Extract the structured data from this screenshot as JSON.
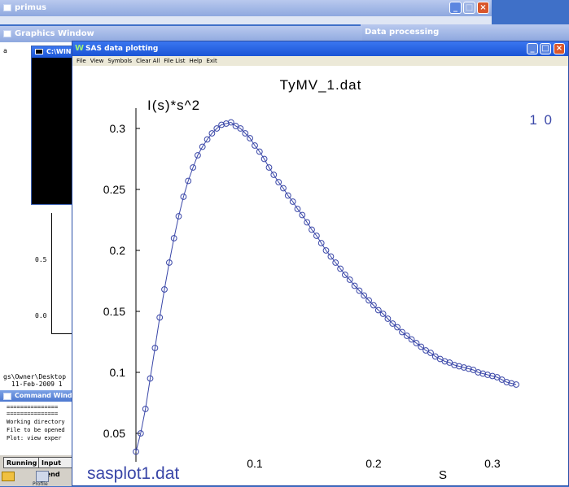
{
  "windows": {
    "primus": {
      "title": "primus"
    },
    "graphics": {
      "title": "Graphics Window",
      "label_a": "a",
      "ticks": [
        "0.5",
        "0.0"
      ]
    },
    "data_processing": {
      "title": "Data processing"
    },
    "console": {
      "title": "C:\\WIND"
    },
    "command": {
      "title": "Command Window",
      "path": "gs\\Owner\\Desktop",
      "date": "11-Feb-2009  1",
      "separator": "===============",
      "lines": [
        "Working directory",
        "File to be opened",
        "Plot: view exper"
      ]
    },
    "sas": {
      "title": "SAS data plotting",
      "menu": [
        "File",
        "View",
        "Symbols",
        "Clear All",
        "File List",
        "Help",
        "Exit"
      ]
    }
  },
  "taskbar": {
    "running": "Running",
    "input": "Input pend",
    "icon_label": "Profile"
  },
  "chart_data": {
    "type": "scatter",
    "title": "TyMV_1.dat",
    "ylabel": "I(s)*s^2",
    "xlabel": "S",
    "corner_label": "1 0",
    "footer_label": "sasplot1.dat",
    "xlim": [
      0.0,
      0.322
    ],
    "ylim": [
      0.032,
      0.31
    ],
    "x_ticks": [
      "0.1",
      "0.2",
      "0.3"
    ],
    "y_ticks": [
      "0.3",
      "0.25",
      "0.2",
      "0.15",
      "0.1",
      "0.05"
    ],
    "colors": {
      "series": "#3a47a8",
      "text": "#000000"
    },
    "series": [
      {
        "x": [
          0.0,
          0.004,
          0.008,
          0.012,
          0.016,
          0.02,
          0.024,
          0.028,
          0.032,
          0.036,
          0.04,
          0.044,
          0.048,
          0.052,
          0.056,
          0.06,
          0.064,
          0.068,
          0.072,
          0.076,
          0.08,
          0.084,
          0.088,
          0.092,
          0.096,
          0.1,
          0.104,
          0.108,
          0.112,
          0.116,
          0.12,
          0.124,
          0.128,
          0.132,
          0.136,
          0.14,
          0.144,
          0.148,
          0.152,
          0.156,
          0.16,
          0.164,
          0.168,
          0.172,
          0.176,
          0.18,
          0.184,
          0.188,
          0.192,
          0.196,
          0.2,
          0.204,
          0.208,
          0.212,
          0.216,
          0.22,
          0.224,
          0.228,
          0.232,
          0.236,
          0.24,
          0.244,
          0.248,
          0.252,
          0.256,
          0.26,
          0.264,
          0.268,
          0.272,
          0.276,
          0.28,
          0.284,
          0.288,
          0.292,
          0.296,
          0.3,
          0.304,
          0.308,
          0.312,
          0.316,
          0.32
        ],
        "y": [
          0.035,
          0.05,
          0.07,
          0.095,
          0.12,
          0.145,
          0.168,
          0.19,
          0.21,
          0.228,
          0.244,
          0.257,
          0.268,
          0.278,
          0.285,
          0.291,
          0.296,
          0.3,
          0.303,
          0.304,
          0.305,
          0.302,
          0.3,
          0.296,
          0.292,
          0.286,
          0.281,
          0.275,
          0.268,
          0.262,
          0.256,
          0.251,
          0.245,
          0.24,
          0.234,
          0.229,
          0.223,
          0.217,
          0.212,
          0.206,
          0.2,
          0.195,
          0.19,
          0.185,
          0.18,
          0.176,
          0.171,
          0.167,
          0.163,
          0.159,
          0.155,
          0.151,
          0.148,
          0.144,
          0.14,
          0.137,
          0.133,
          0.13,
          0.127,
          0.124,
          0.121,
          0.118,
          0.116,
          0.113,
          0.111,
          0.109,
          0.108,
          0.106,
          0.105,
          0.104,
          0.103,
          0.102,
          0.1,
          0.099,
          0.098,
          0.097,
          0.096,
          0.094,
          0.092,
          0.091,
          0.09
        ]
      }
    ]
  }
}
